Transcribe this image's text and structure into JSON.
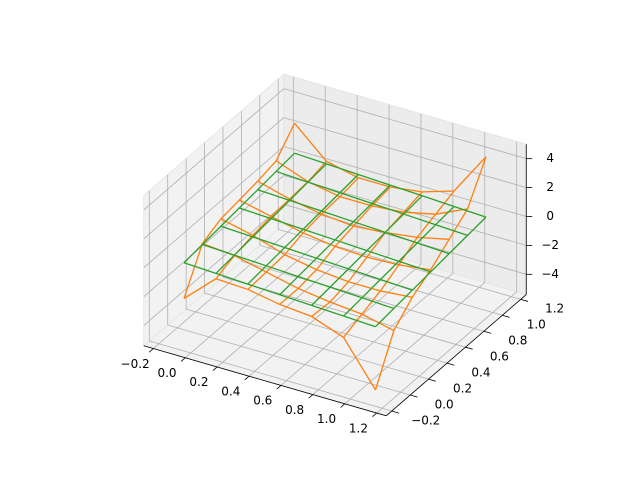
{
  "chart_data": {
    "type": "wireframe3d",
    "x": [
      -0.1,
      0.1,
      0.3,
      0.5,
      0.7,
      0.9,
      1.1
    ],
    "y": [
      -0.1,
      0.1,
      0.3,
      0.5,
      0.7,
      0.9,
      1.1
    ],
    "surfaces": [
      {
        "color": "#ff7f0e",
        "z": [
          [
            -2.5,
            -0.5,
            -0.6,
            -1.0,
            -1.2,
            -2.0,
            -5.0
          ],
          [
            0.2,
            0.0,
            -0.5,
            -1.0,
            -1.3,
            -1.5,
            -2.0
          ],
          [
            0.8,
            0.3,
            -0.4,
            -0.8,
            -1.0,
            -1.0,
            -0.8
          ],
          [
            1.0,
            0.5,
            0.0,
            -0.3,
            -0.4,
            -0.3,
            0.0
          ],
          [
            1.2,
            0.6,
            0.2,
            0.0,
            0.2,
            0.5,
            1.0
          ],
          [
            1.5,
            0.7,
            0.3,
            0.3,
            0.5,
            1.0,
            2.0
          ],
          [
            3.0,
            1.0,
            0.5,
            0.5,
            0.8,
            1.5,
            4.5
          ]
        ]
      },
      {
        "color": "#2ca02c",
        "z": [
          [
            -0.03,
            -0.13,
            -0.23,
            -0.33,
            -0.43,
            -0.53,
            -0.63
          ],
          [
            0.13,
            0.03,
            -0.07,
            -0.17,
            -0.27,
            -0.37,
            -0.47
          ],
          [
            0.29,
            0.19,
            0.09,
            -0.01,
            -0.11,
            -0.21,
            -0.31
          ],
          [
            0.45,
            0.35,
            0.25,
            0.15,
            0.05,
            -0.05,
            -0.15
          ],
          [
            0.61,
            0.51,
            0.41,
            0.31,
            0.21,
            0.11,
            0.01
          ],
          [
            0.77,
            0.67,
            0.57,
            0.47,
            0.37,
            0.27,
            0.17
          ],
          [
            0.93,
            0.83,
            0.73,
            0.63,
            0.53,
            0.43,
            0.33
          ]
        ]
      }
    ],
    "xlim": [
      -0.26,
      1.26
    ],
    "ylim": [
      -0.26,
      1.26
    ],
    "zlim": [
      -5.4,
      5.0
    ],
    "xticks": [
      {
        "value": -0.2,
        "label": "−0.2"
      },
      {
        "value": 0.0,
        "label": "0.0"
      },
      0.2,
      0.4,
      0.6,
      0.8,
      {
        "value": 1.0,
        "label": "1.0"
      },
      1.2
    ],
    "yticks": [
      {
        "value": -0.2,
        "label": "−0.2"
      },
      {
        "value": 0.0,
        "label": "0.0"
      },
      0.2,
      0.4,
      0.6,
      0.8,
      {
        "value": 1.0,
        "label": "1.0"
      },
      1.2
    ],
    "zticks": [
      {
        "value": -4,
        "label": "−4"
      },
      {
        "value": -2,
        "label": "−2"
      },
      0,
      2,
      4
    ],
    "grid": true
  }
}
